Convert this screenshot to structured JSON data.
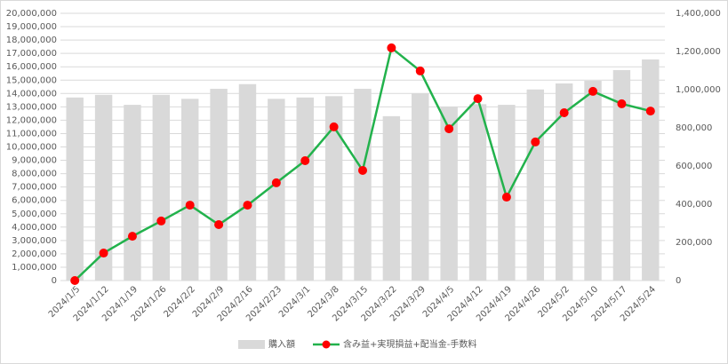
{
  "chart_data": {
    "type": "bar-line",
    "categories": [
      "2024/1/5",
      "2024/1/12",
      "2024/1/19",
      "2024/1/26",
      "2024/2/2",
      "2024/2/9",
      "2024/2/16",
      "2024/2/23",
      "2024/3/1",
      "2024/3/8",
      "2024/3/15",
      "2024/3/22",
      "2024/3/29",
      "2024/4/5",
      "2024/4/12",
      "2024/4/19",
      "2024/4/26",
      "2024/5/2",
      "2024/5/10",
      "2024/5/17",
      "2024/5/24"
    ],
    "series": [
      {
        "name": "購入額",
        "type": "bar",
        "color": "#d9d9d9",
        "values": [
          13700000,
          13900000,
          13150000,
          13900000,
          13600000,
          14350000,
          14700000,
          13600000,
          13700000,
          13800000,
          14350000,
          12300000,
          14000000,
          13000000,
          13200000,
          13150000,
          14300000,
          14750000,
          14950000,
          15750000,
          16550000
        ]
      },
      {
        "name": "含み益+実現損益+配当金-手数料",
        "type": "line",
        "axis": "y2",
        "color": "#22b24c",
        "marker_color": "#ff0000",
        "values": [
          0,
          144000,
          232000,
          312000,
          395000,
          293000,
          395000,
          512000,
          628000,
          805000,
          577000,
          1219000,
          1098000,
          795000,
          953000,
          437000,
          726000,
          879000,
          991000,
          926000,
          888000
        ]
      }
    ],
    "ylim": [
      0,
      20000000
    ],
    "yticks": [
      0,
      {
        "value": 1000000,
        "label": "1,000,000"
      },
      {
        "value": 2000000,
        "label": "2,000,000"
      },
      {
        "value": 3000000,
        "label": "3,000,000"
      },
      {
        "value": 4000000,
        "label": "4,000,000"
      },
      {
        "value": 5000000,
        "label": "5,000,000"
      },
      {
        "value": 6000000,
        "label": "6,000,000"
      },
      {
        "value": 7000000,
        "label": "7,000,000"
      },
      {
        "value": 8000000,
        "label": "8,000,000"
      },
      {
        "value": 9000000,
        "label": "9,000,000"
      },
      {
        "value": 10000000,
        "label": "10,000,000"
      },
      {
        "value": 11000000,
        "label": "11,000,000"
      },
      {
        "value": 12000000,
        "label": "12,000,000"
      },
      {
        "value": 13000000,
        "label": "13,000,000"
      },
      {
        "value": 14000000,
        "label": "14,000,000"
      },
      {
        "value": 15000000,
        "label": "15,000,000"
      },
      {
        "value": 16000000,
        "label": "16,000,000"
      },
      {
        "value": 17000000,
        "label": "17,000,000"
      },
      {
        "value": 18000000,
        "label": "18,000,000"
      },
      {
        "value": 19000000,
        "label": "19,000,000"
      },
      {
        "value": 20000000,
        "label": "20,000,000"
      }
    ],
    "y2lim": [
      0,
      1400000
    ],
    "y2ticks": [
      0,
      {
        "value": 200000,
        "label": "200,000"
      },
      {
        "value": 400000,
        "label": "400,000"
      },
      {
        "value": 600000,
        "label": "600,000"
      },
      {
        "value": 800000,
        "label": "800,000"
      },
      {
        "value": 1000000,
        "label": "1,000,000"
      },
      {
        "value": 1200000,
        "label": "1,200,000"
      },
      {
        "value": 1400000,
        "label": "1,400,000"
      }
    ],
    "grid": true,
    "legend": "bottom"
  }
}
